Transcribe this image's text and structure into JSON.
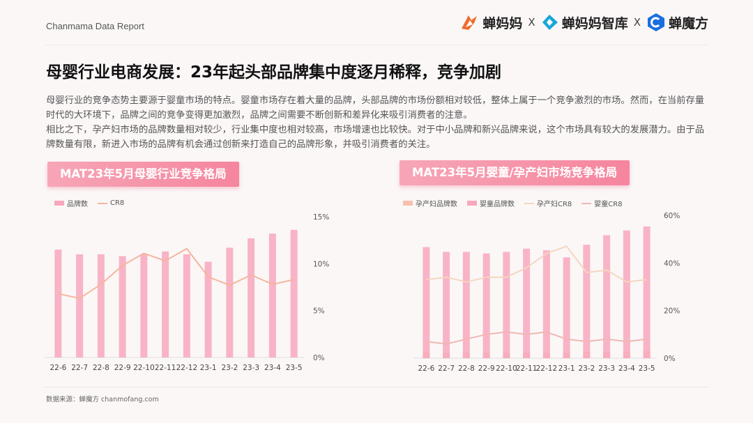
{
  "header": {
    "report_label": "Chanmama Data Report",
    "logos": [
      "蝉妈妈",
      "蝉妈妈智库",
      "蝉魔方"
    ],
    "sep": "X"
  },
  "page": {
    "title": "母婴行业电商发展：23年起头部品牌集中度逐月稀释，竞争加剧",
    "paragraphs": [
      "母婴行业的竞争态势主要源于婴童市场的特点。婴童市场存在着大量的品牌，头部品牌的市场份额相对较低，整体上属于一个竞争激烈的市场。然而，在当前存量时代的大环境下，品牌之间的竞争变得更加激烈，品牌之间需要不断创新和差异化来吸引消费者的注意。",
      "相比之下，孕产妇市场的品牌数量相对较少，行业集中度也相对较高，市场增速也比较快。对于中小品牌和新兴品牌来说，这个市场具有较大的发展潜力。由于品牌数量有限，新进入市场的品牌有机会通过创新来打造自己的品牌形象，并吸引消费者的关注。"
    ]
  },
  "footer": {
    "source": "数据来源：蝉魔方 chanmofang.com"
  },
  "colors": {
    "bar": "#f7a8bd",
    "line": "#f6b59c",
    "maternal_bar": "#f9c0ae",
    "maternal_line": "#f4d6c0",
    "infant_line": "#f0b7b3",
    "accent": "#f5869f"
  },
  "chart_data": [
    {
      "type": "bar",
      "title": "MAT23年5月母婴行业竞争格局",
      "categories": [
        "22-6",
        "22-7",
        "22-8",
        "22-9",
        "22-10",
        "22-11",
        "22-12",
        "23-1",
        "23-2",
        "23-3",
        "23-4",
        "23-5"
      ],
      "series": [
        {
          "name": "品牌数",
          "kind": "bar",
          "axis": "left",
          "values": [
            115,
            110,
            110,
            108,
            110,
            113,
            110,
            102,
            117,
            127,
            132,
            136
          ]
        },
        {
          "name": "CR8",
          "kind": "line",
          "axis": "right",
          "values": [
            6.8,
            6.3,
            7.8,
            9.8,
            11.1,
            10.3,
            11.6,
            8.6,
            7.7,
            8.8,
            7.8,
            8.3
          ]
        }
      ],
      "right_axis": {
        "ticks": [
          "0%",
          "5%",
          "10%",
          "15%"
        ],
        "ylim": [
          0,
          15
        ]
      },
      "left_ylim": [
        0,
        150
      ],
      "legend": "top-left"
    },
    {
      "type": "bar",
      "title": "MAT23年5月婴童/孕产妇市场竞争格局",
      "categories": [
        "22-6",
        "22-7",
        "22-8",
        "22-9",
        "22-10",
        "22-11",
        "22-12",
        "23-1",
        "23-2",
        "23-3",
        "23-4",
        "23-5"
      ],
      "series": [
        {
          "name": "孕产妇品牌数",
          "kind": "bar",
          "axis": "left",
          "values": [
            7,
            7,
            7,
            7,
            7,
            7,
            7,
            7,
            8,
            8,
            8,
            9
          ]
        },
        {
          "name": "婴童品牌数",
          "kind": "bar",
          "axis": "left",
          "values": [
            140,
            134,
            134,
            132,
            134,
            138,
            136,
            127,
            143,
            155,
            161,
            166
          ]
        },
        {
          "name": "孕产妇CR8",
          "kind": "line",
          "axis": "right",
          "values": [
            33,
            34,
            32,
            34,
            34,
            38,
            44,
            47,
            36,
            37,
            32,
            33
          ]
        },
        {
          "name": "婴童CR8",
          "kind": "line",
          "axis": "right",
          "values": [
            7,
            6,
            8,
            10,
            11,
            10,
            11,
            8,
            7,
            8,
            7,
            8
          ]
        }
      ],
      "right_axis": {
        "ticks": [
          "0%",
          "20%",
          "40%",
          "60%"
        ],
        "ylim": [
          0,
          60
        ]
      },
      "left_ylim": [
        0,
        180
      ],
      "legend": "top-left"
    }
  ]
}
